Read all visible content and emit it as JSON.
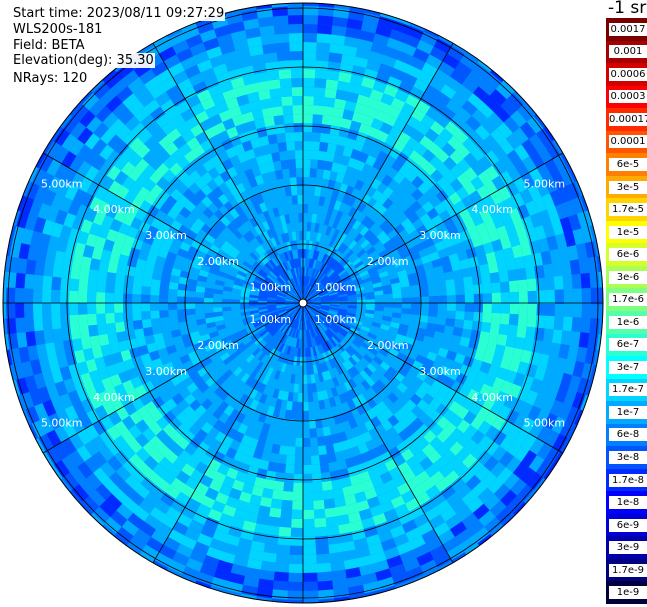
{
  "info": {
    "start_time": "Start time: 2023/08/11 09:27:29",
    "instrument": "WLS200s-181",
    "field": "Field: BETA",
    "elevation": "Elevation(deg): 35.30",
    "nrays": "NRays: 120"
  },
  "colorbar": {
    "unit_title": "-1 sr",
    "labels": [
      "0.0017",
      "0.001",
      "0.0006",
      "0.0003",
      "0.00017",
      "0.0001",
      "6e-5",
      "3e-5",
      "1.7e-5",
      "1e-5",
      "6e-6",
      "3e-6",
      "1.7e-6",
      "1e-6",
      "6e-7",
      "3e-7",
      "1.7e-7",
      "1e-7",
      "6e-8",
      "3e-8",
      "1.7e-8",
      "1e-8",
      "6e-9",
      "3e-9",
      "1.7e-9",
      "1e-9"
    ],
    "colors": [
      "#7a0000",
      "#a80000",
      "#d40000",
      "#ff0000",
      "#ff2a00",
      "#ff5500",
      "#ff8000",
      "#ffaa00",
      "#ffd400",
      "#ffff00",
      "#d4ff2a",
      "#aaff55",
      "#80ff80",
      "#55ffaa",
      "#2affd4",
      "#00ffff",
      "#00d4ff",
      "#00aaff",
      "#0080ff",
      "#0055ff",
      "#002aff",
      "#0000ff",
      "#0000d4",
      "#0000aa",
      "#000080",
      "#00003a"
    ]
  },
  "range_rings": {
    "labels": [
      "1.00km",
      "2.00km",
      "3.00km",
      "4.00km",
      "5.00km"
    ]
  }
}
